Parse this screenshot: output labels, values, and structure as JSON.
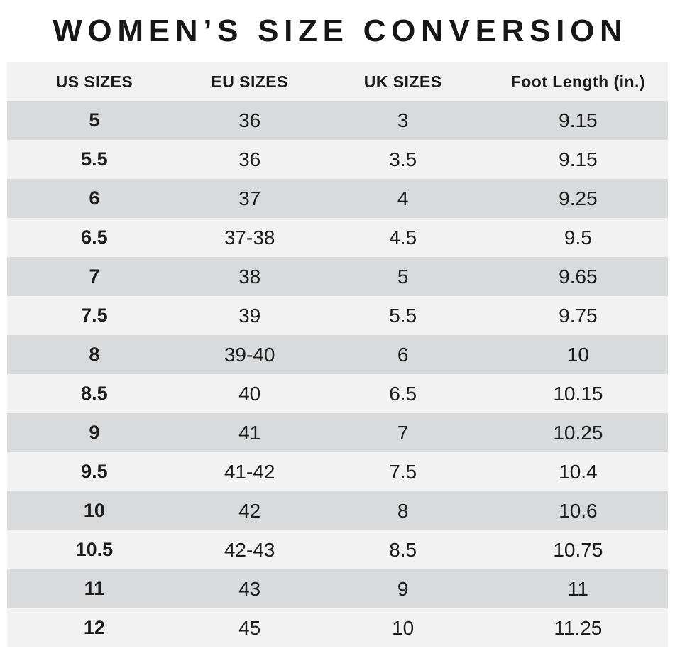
{
  "title": "WOMEN’S SIZE CONVERSION",
  "chart_data": {
    "type": "table",
    "title": "WOMEN’S SIZE CONVERSION",
    "columns": [
      "US SIZES",
      "EU SIZES",
      "UK SIZES",
      "Foot Length (in.)"
    ],
    "rows": [
      [
        "5",
        "36",
        "3",
        "9.15"
      ],
      [
        "5.5",
        "36",
        "3.5",
        "9.15"
      ],
      [
        "6",
        "37",
        "4",
        "9.25"
      ],
      [
        "6.5",
        "37-38",
        "4.5",
        "9.5"
      ],
      [
        "7",
        "38",
        "5",
        "9.65"
      ],
      [
        "7.5",
        "39",
        "5.5",
        "9.75"
      ],
      [
        "8",
        "39-40",
        "6",
        "10"
      ],
      [
        "8.5",
        "40",
        "6.5",
        "10.15"
      ],
      [
        "9",
        "41",
        "7",
        "10.25"
      ],
      [
        "9.5",
        "41-42",
        "7.5",
        "10.4"
      ],
      [
        "10",
        "42",
        "8",
        "10.6"
      ],
      [
        "10.5",
        "42-43",
        "8.5",
        "10.75"
      ],
      [
        "11",
        "43",
        "9",
        "11"
      ],
      [
        "12",
        "45",
        "10",
        "11.25"
      ]
    ]
  },
  "colors": {
    "page_bg": "#ffffff",
    "header_bg": "#f1f1f1",
    "row_dark": "#d9dadb",
    "row_light": "#f2f2f3",
    "text": "#1c1c1c"
  }
}
